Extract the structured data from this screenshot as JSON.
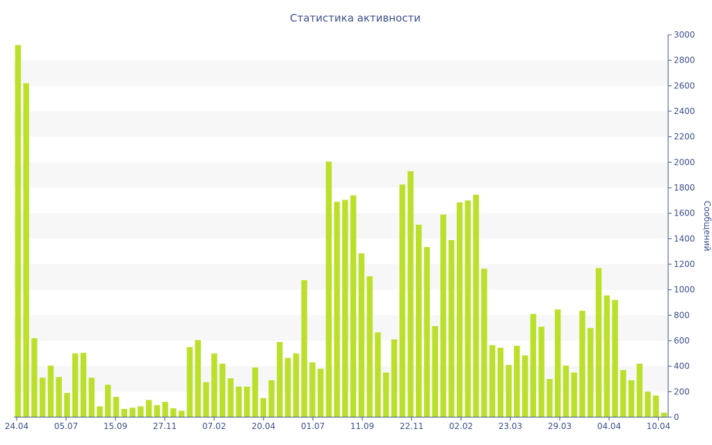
{
  "chart_data": {
    "type": "bar",
    "title": "Статистика активности",
    "ylabel": "Сообщений",
    "ylim": [
      0,
      3000
    ],
    "yticks": [
      0,
      200,
      400,
      600,
      800,
      1000,
      1200,
      1400,
      1600,
      1800,
      2000,
      2200,
      2400,
      2600,
      2800,
      3000
    ],
    "x_tick_labels": [
      "24.04",
      "05.07",
      "15.09",
      "27.11",
      "07.02",
      "20.04",
      "01.07",
      "11.09",
      "22.11",
      "02.02",
      "23.03",
      "29.03",
      "04.04",
      "10.04"
    ],
    "grid": "alternating horizontal bands",
    "colors": {
      "bar": "#bbe02b",
      "text": "#3b4f8a",
      "band": "#f7f7f7"
    },
    "values": [
      2920,
      2620,
      620,
      310,
      405,
      315,
      190,
      500,
      505,
      310,
      85,
      255,
      160,
      65,
      75,
      85,
      135,
      95,
      120,
      70,
      50,
      550,
      605,
      275,
      500,
      420,
      305,
      240,
      240,
      390,
      150,
      290,
      590,
      465,
      500,
      1075,
      430,
      380,
      2005,
      1690,
      1705,
      1740,
      1285,
      1105,
      665,
      350,
      610,
      1825,
      1930,
      1510,
      1335,
      715,
      1590,
      1390,
      1685,
      1700,
      1745,
      1165,
      565,
      545,
      410,
      560,
      485,
      810,
      710,
      300,
      845,
      405,
      350,
      835,
      700,
      1170,
      955,
      920,
      370,
      290,
      420,
      200,
      170,
      35
    ]
  }
}
